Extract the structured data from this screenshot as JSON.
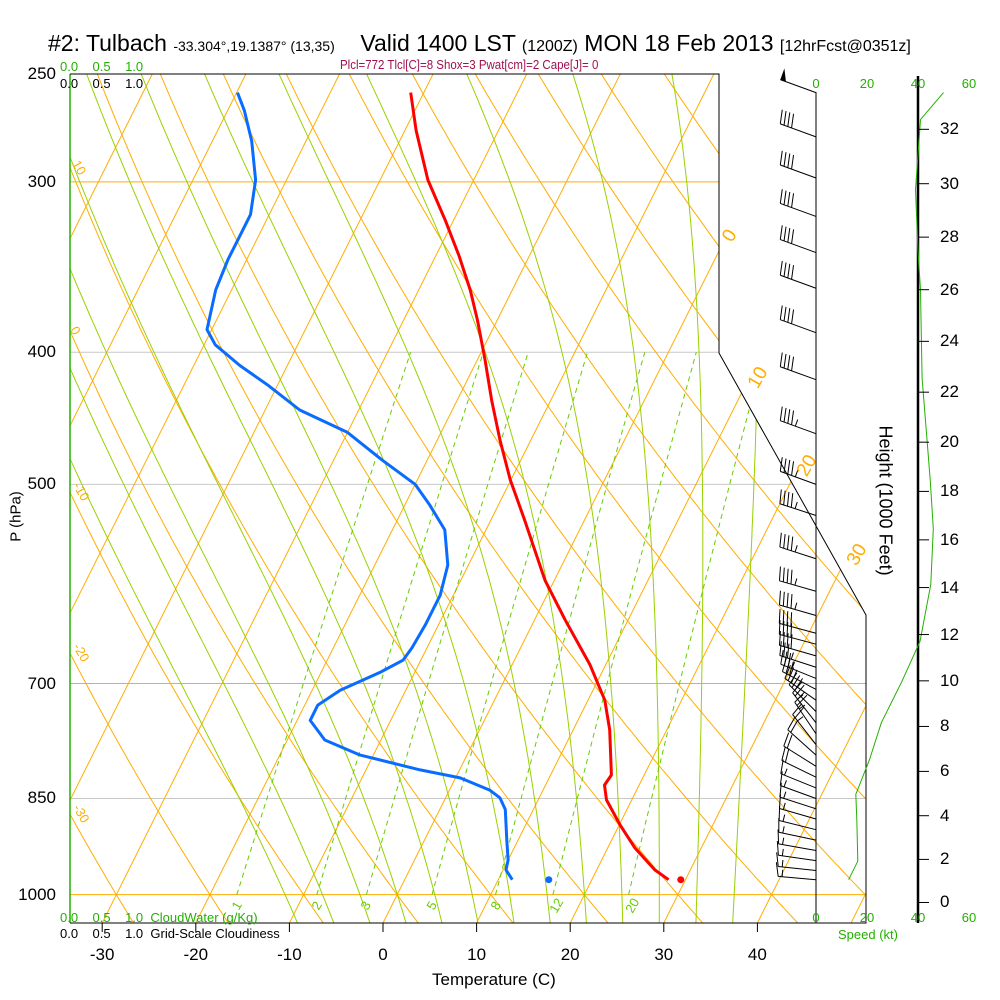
{
  "header": {
    "station": "#2: Tulbach",
    "coords": "-33.304°,19.1387° (13,35)",
    "valid": "Valid 1400 LST",
    "utc": "(1200Z)",
    "date": "MON 18 Feb 2013",
    "forecast": "[12hrFcst@0351z]"
  },
  "indices": "Plcl=772 Tlcl[C]=8 Shox=3 Pwat[cm]=2 Cape[J]= 0",
  "cloud": {
    "water_ticks": [
      "0.0",
      "0.5",
      "1.0"
    ],
    "water_label": "CloudWater (g/Kg)",
    "cover_ticks": [
      "0.0",
      "0.5",
      "1.0"
    ],
    "cover_label": "Grid-Scale Cloudiness"
  },
  "colors": {
    "temperature": "#ff0000",
    "dewpoint": "#0a6cff",
    "isotherm": "#ffad00",
    "dry_adiabat": "#ffad00",
    "moist_adiabat": "#99d100",
    "mixing_ratio": "#66cc00",
    "wind_speed": "#22b000",
    "axis_green": "#22b000"
  },
  "chart_data": {
    "type": "line",
    "subtype": "skew-T log-P sounding",
    "xlabel": "Temperature (C)",
    "ylabel": "P (hPa)",
    "y2label": "Height (1000 Feet)",
    "speed_label": "Speed (kt)",
    "pressure_ticks": [
      250,
      300,
      400,
      500,
      700,
      850,
      1000
    ],
    "temperature_ticks": [
      -30,
      -20,
      -10,
      0,
      10,
      20,
      30,
      40
    ],
    "height_ticks": [
      0,
      2,
      4,
      6,
      8,
      10,
      12,
      14,
      16,
      18,
      20,
      22,
      24,
      26,
      28,
      30,
      32
    ],
    "speed_ticks": [
      0,
      20,
      40,
      60
    ],
    "isotherm_labels": [
      0,
      10,
      20,
      30
    ],
    "dry_adiabat_labels": [
      10,
      0,
      -10,
      -20,
      -30
    ],
    "mixing_ratio_labels": [
      1,
      2,
      3,
      5,
      8,
      12,
      20
    ],
    "ylim": [
      1050,
      250
    ],
    "series": [
      {
        "name": "Temperature",
        "p": [
          258,
          275,
          299,
          320,
          340,
          360,
          379,
          405,
          434,
          464,
          496,
          531,
          588,
          629,
          678,
          720,
          757,
          817,
          831,
          852,
          889,
          924,
          959,
          975
        ],
        "t": [
          -41.4,
          -38.8,
          -34.9,
          -30.9,
          -27.5,
          -24.5,
          -22.1,
          -19.2,
          -16.3,
          -13.3,
          -10.1,
          -6.4,
          -1.0,
          3.3,
          8.3,
          11.8,
          13.9,
          16.5,
          16.3,
          17.3,
          20.1,
          22.9,
          26.2,
          28.2
        ]
      },
      {
        "name": "Dewpoint",
        "p": [
          258,
          266,
          280,
          299,
          317,
          328,
          342,
          360,
          385,
          395,
          409,
          423,
          441,
          458,
          480,
          500,
          518,
          540,
          573,
          603,
          634,
          659,
          673,
          687,
          708,
          726,
          745,
          770,
          790,
          810,
          821,
          838,
          849,
          866,
          912,
          943,
          959,
          975
        ],
        "t": [
          -59.9,
          -58.2,
          -55.8,
          -53.3,
          -52.0,
          -52.0,
          -52.0,
          -51.7,
          -50.5,
          -48.8,
          -45.1,
          -41.0,
          -36.3,
          -30.0,
          -24.8,
          -20.0,
          -17.3,
          -14.4,
          -12.2,
          -11.4,
          -11.4,
          -11.6,
          -11.9,
          -13.7,
          -17.0,
          -18.6,
          -18.6,
          -16.0,
          -11.4,
          -4.2,
          0.5,
          4.3,
          5.8,
          7.0,
          8.8,
          10.0,
          10.3,
          11.5
        ]
      }
    ],
    "surface": {
      "p": 975,
      "t": 29.5,
      "td": 15.4
    },
    "wind_speed": {
      "p": [
        258,
        270,
        304,
        337,
        360,
        418,
        496,
        539,
        592,
        652,
        698,
        748,
        796,
        844,
        880,
        945,
        975
      ],
      "kt": [
        50,
        41,
        39,
        40,
        41,
        41.6,
        44.8,
        46,
        45,
        40.8,
        33.6,
        25.6,
        21,
        15.6,
        16,
        16.4,
        12.8
      ]
    },
    "wind_barbs": {
      "p": [
        258,
        278,
        298,
        318,
        338,
        359,
        387,
        419,
        459,
        500,
        527,
        567,
        599,
        624,
        643,
        655,
        668,
        681,
        694,
        707,
        720,
        734,
        748,
        762,
        776,
        790,
        805,
        820,
        835,
        850,
        865,
        880,
        896,
        912,
        928,
        944,
        960,
        975
      ],
      "dir": [
        290,
        290,
        290,
        290,
        290,
        290,
        290,
        290,
        290,
        290,
        288,
        288,
        286,
        286,
        285,
        285,
        286,
        288,
        292,
        298,
        305,
        315,
        322,
        326,
        322,
        312,
        302,
        296,
        292,
        290,
        288,
        286,
        284,
        282,
        280,
        278,
        276,
        275
      ]
    }
  }
}
